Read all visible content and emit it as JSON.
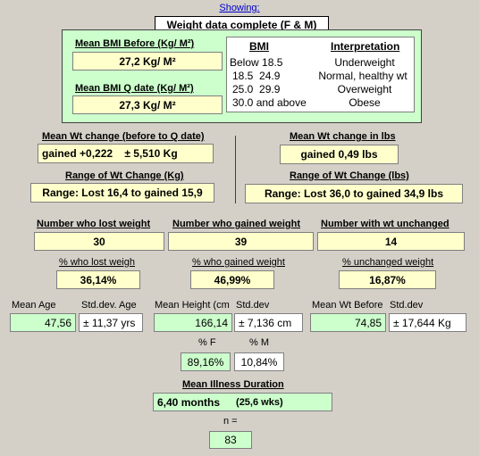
{
  "showing_label": "Showing:",
  "report_title": "Weight data complete (F & M)",
  "bmi_panel": {
    "before_label": "Mean BMI Before (Kg/ M²)",
    "before_value": "27,2 Kg/ M²",
    "qdate_label": "Mean BMI Q date (Kg/ M²)",
    "qdate_value": "27,3 Kg/ M²",
    "legend_header_bmi": "BMI",
    "legend_header_interp": "Interpretation",
    "legend_rows": [
      {
        "bmi": "Below 18.5",
        "interp": "Underweight"
      },
      {
        "bmi": "18.5  24.9",
        "interp": "Normal, healthy wt"
      },
      {
        "bmi": "25.0  29.9",
        "interp": "Overweight"
      },
      {
        "bmi": "30.0 and above",
        "interp": "Obese"
      }
    ]
  },
  "wt_change": {
    "kg_label": "Mean Wt change (before to Q date)",
    "kg_value": "gained +0,222    ± 5,510 Kg",
    "lbs_label": "Mean Wt change in lbs",
    "lbs_value": "gained 0,49 lbs",
    "range_kg_label": "Range of Wt Change (Kg)",
    "range_kg_value": "Range: Lost 16,4 to gained 15,9",
    "range_lbs_label": "Range of Wt Change (lbs)",
    "range_lbs_value": "Range: Lost 36,0 to gained 34,9 lbs"
  },
  "counts": {
    "lost_label": "Number who lost weight",
    "lost_value": "30",
    "gained_label": "Number who gained weight",
    "gained_value": "39",
    "unchanged_label": "Number with wt unchanged",
    "unchanged_value": "14",
    "pct_lost_label": "% who lost weigh",
    "pct_lost_value": "36,14%",
    "pct_gained_label": "% who gained weight",
    "pct_gained_value": "46,99%",
    "pct_unchanged_label": "% unchanged weight",
    "pct_unchanged_value": "16,87%"
  },
  "stats": {
    "age_label": "Mean Age",
    "age_value": "47,56",
    "age_sd_label": "Std.dev. Age",
    "age_sd_value": "± 11,37 yrs",
    "height_label": "Mean Height (cm",
    "height_value": "166,14",
    "height_sd_label": "Std.dev",
    "height_sd_value": "± 7,136 cm",
    "wt_label": "Mean Wt Before",
    "wt_value": "74,85",
    "wt_sd_label": "Std.dev",
    "wt_sd_value": "± 17,644 Kg"
  },
  "sex": {
    "f_label": "% F",
    "f_value": "89,16%",
    "m_label": "% M",
    "m_value": "10,84%"
  },
  "illness": {
    "label": "Mean Illness Duration",
    "months": "6,40 months",
    "weeks": "(25,6 wks)"
  },
  "n": {
    "label": "n =",
    "value": "83"
  }
}
